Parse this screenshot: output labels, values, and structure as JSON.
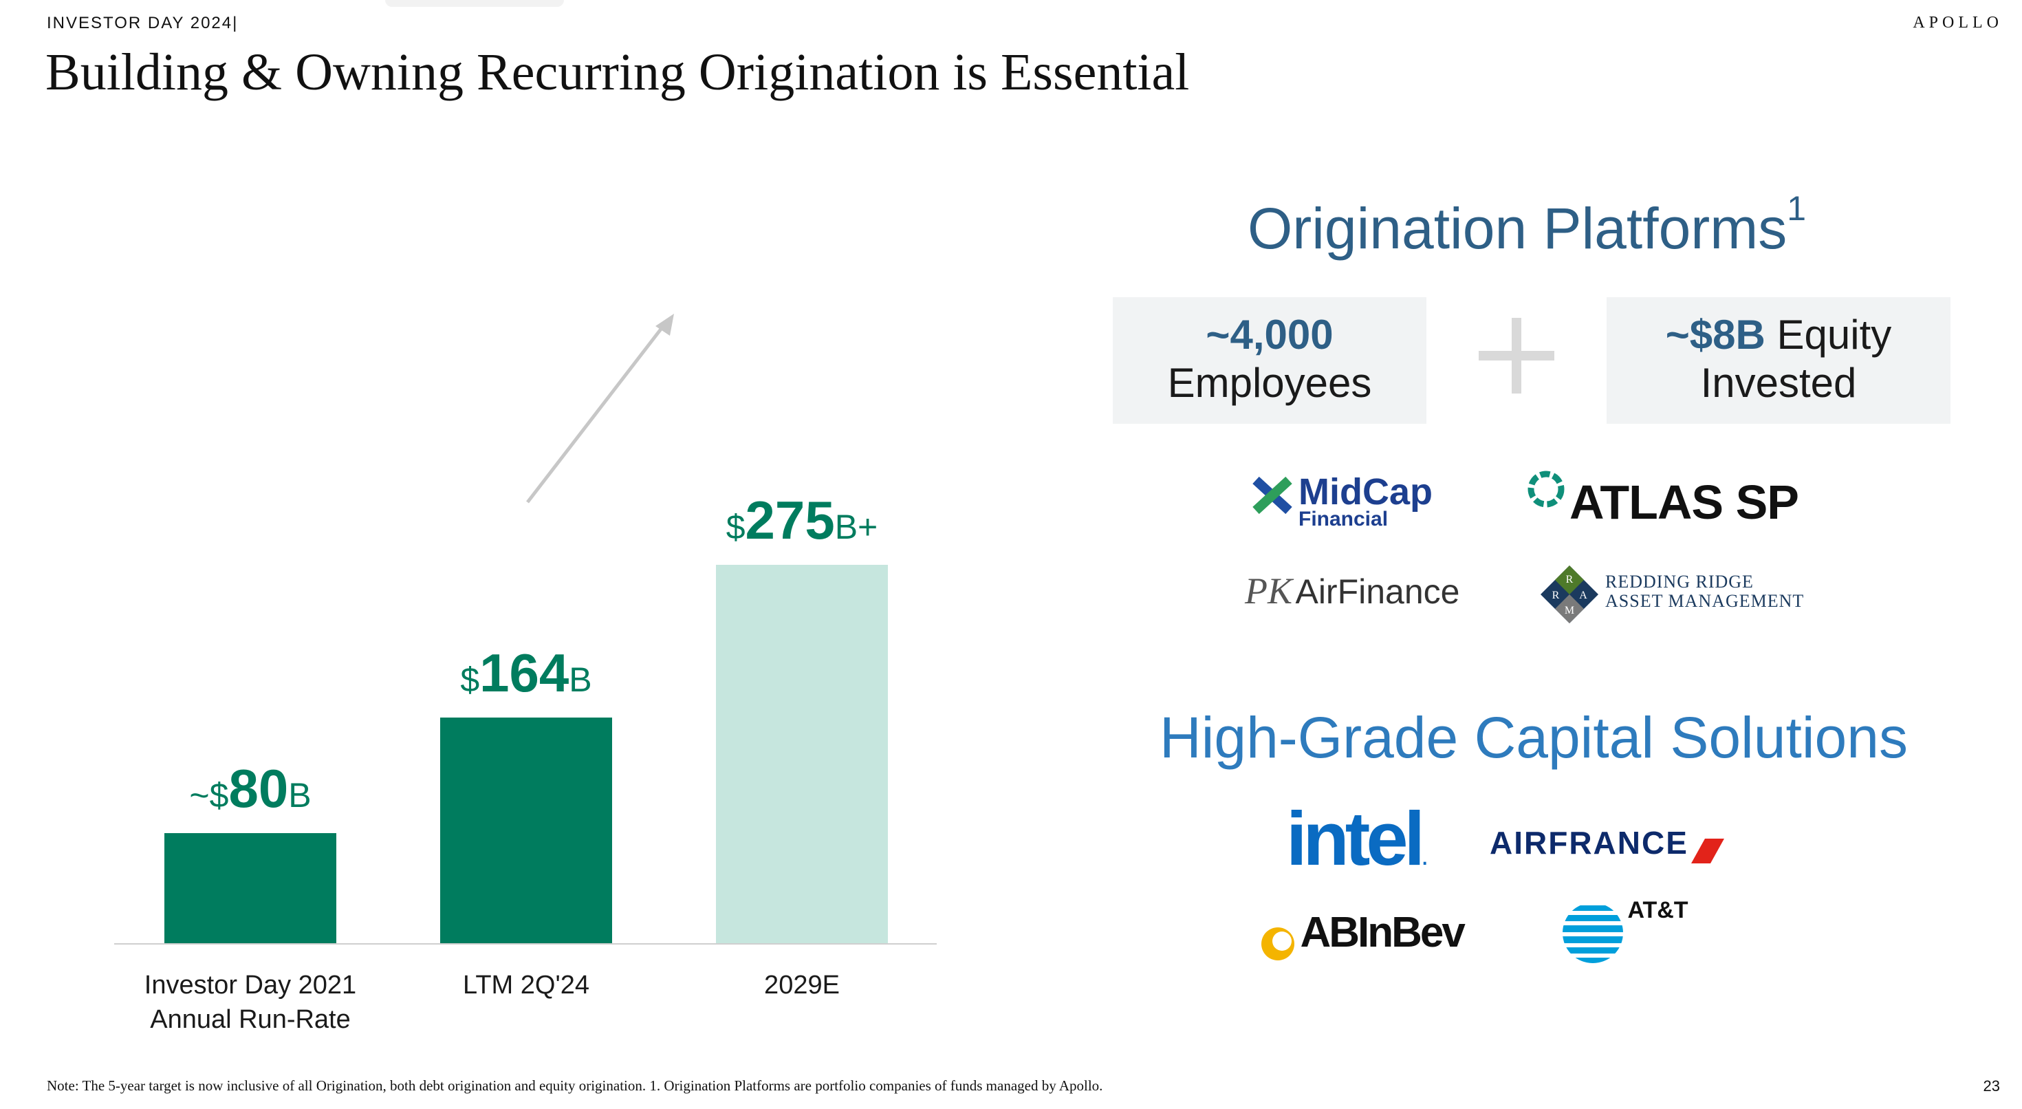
{
  "header": {
    "left": "INVESTOR DAY 2024|",
    "right": "APOLLO"
  },
  "title": "Building & Owning Recurring Origination is Essential",
  "chart_data": {
    "type": "bar",
    "categories": [
      "Investor Day 2021 Annual Run-Rate",
      "LTM 2Q'24",
      "2029E"
    ],
    "category_lines": [
      [
        "Investor Day 2021",
        "Annual Run-Rate"
      ],
      [
        "LTM 2Q'24"
      ],
      [
        "2029E"
      ]
    ],
    "values": [
      80,
      164,
      275
    ],
    "unit": "$B",
    "labels": [
      {
        "prefix": "~$",
        "number": "80",
        "suffix": "B"
      },
      {
        "prefix": "$",
        "number": "164",
        "suffix": "B"
      },
      {
        "prefix": "$",
        "number": "275",
        "suffix": "B+"
      }
    ],
    "colors": [
      "#007c5e",
      "#007c5e",
      "#c6e6de"
    ],
    "ylim": [
      0,
      300
    ],
    "grid": false,
    "arrow": "up-right from LTM 2Q'24 to 2029E"
  },
  "origination": {
    "title": "Origination Platforms",
    "footnote_mark": "1",
    "stat1": {
      "value": "~4,000",
      "label": "Employees"
    },
    "stat2": {
      "value": "~$8B",
      "label1": "Equity",
      "label2": "Invested"
    },
    "logos": {
      "midcap": {
        "name": "MidCap",
        "sub": "Financial",
        "icon": "x-cross-icon"
      },
      "atlas": {
        "name": "ATLAS SP",
        "icon": "ring-icon"
      },
      "pk": {
        "mark": "PK",
        "name": "AirFinance"
      },
      "redding": {
        "line1": "REDDING RIDGE",
        "line2": "ASSET MANAGEMENT",
        "mark_letters": [
          "R",
          "R",
          "A",
          "M"
        ]
      }
    }
  },
  "high_grade": {
    "title": "High-Grade Capital Solutions",
    "logos": {
      "intel": "intel",
      "intel_mark": ".",
      "airfrance": "AIRFRANCE",
      "abinbev": "ABInBev",
      "att": "AT&T"
    }
  },
  "colors": {
    "green": "#007c5e",
    "light_green": "#c6e6de",
    "navy": "#2e5f86",
    "blue": "#2e7bbd"
  },
  "footnote": "Note: The 5-year target is now inclusive of all Origination, both debt origination and equity origination. 1. Origination Platforms are portfolio companies of funds managed by Apollo.",
  "page_number": "23"
}
